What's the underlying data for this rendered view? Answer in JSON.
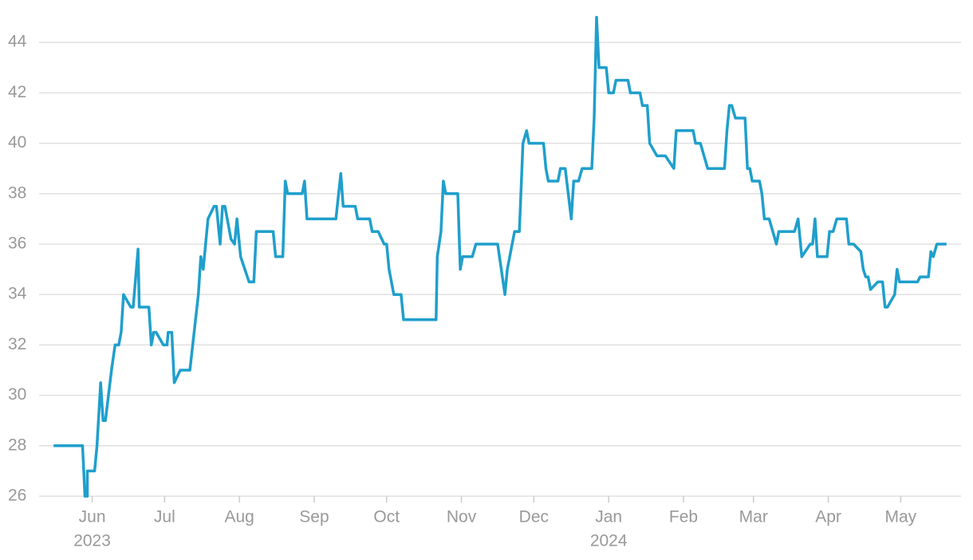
{
  "chart_data": {
    "type": "line",
    "series": [
      {
        "color": "#1f9fcc",
        "x": [
          0,
          12,
          13,
          14,
          14,
          17,
          18,
          19.5,
          20.5,
          21.5,
          24,
          25.5,
          27,
          28,
          29,
          32,
          33,
          35,
          35.5,
          39.5,
          40.5,
          41.5,
          42.5,
          45.5,
          47,
          47.5,
          49,
          50,
          52.5,
          56.5,
          60,
          61,
          62,
          64,
          66.5,
          67.5,
          69,
          70,
          71,
          73.5,
          75,
          76,
          77.5,
          81,
          83,
          84,
          91,
          92,
          95,
          96,
          97,
          103,
          104,
          105,
          117,
          119,
          120,
          125,
          126,
          131,
          132,
          134.5,
          137,
          138,
          139,
          141,
          144,
          145,
          158.5,
          159,
          160.5,
          161.5,
          162.5,
          167.5,
          168.5,
          169.5,
          173.5,
          175,
          184,
          187,
          188,
          191,
          193,
          194.5,
          196,
          197,
          203,
          204,
          205,
          209,
          210,
          212,
          214.5,
          215.5,
          217.5,
          219,
          223,
          224,
          225,
          226,
          229,
          230,
          232,
          233,
          238,
          239,
          243,
          244,
          246,
          247,
          250,
          253.5,
          257,
          258,
          265,
          266,
          268,
          271,
          278,
          279,
          280,
          281,
          282.5,
          286.5,
          287.5,
          288.5,
          289.5,
          292.5,
          293.5,
          294.5,
          296.5,
          299.5,
          300.5,
          307,
          308.5,
          310,
          313.5,
          314.5,
          315.5,
          316.5,
          320.5,
          321.5,
          323,
          324.5,
          328.5,
          329.5,
          331.5,
          334.5,
          335.5,
          336.5,
          337.5,
          338.5,
          341.5,
          343.5,
          344.5,
          345.5,
          348.5,
          349.5,
          350.5,
          358,
          359,
          362.5,
          363.5,
          364.5,
          366,
          370
        ],
        "values": [
          28,
          28,
          26,
          26,
          27,
          27,
          28,
          30.5,
          29,
          29,
          31,
          32,
          32,
          32.5,
          34,
          33.5,
          33.5,
          35.8,
          33.5,
          33.5,
          32,
          32.5,
          32.5,
          32,
          32,
          32.5,
          32.5,
          30.5,
          31,
          31,
          34,
          35.5,
          35,
          37,
          37.5,
          37.5,
          36,
          37.5,
          37.5,
          36.2,
          36,
          37,
          35.5,
          34.5,
          34.5,
          36.5,
          36.5,
          35.5,
          35.5,
          38.5,
          38,
          38,
          38.5,
          37,
          37,
          38.8,
          37.5,
          37.5,
          37,
          37,
          36.5,
          36.5,
          36,
          36,
          35,
          34,
          34,
          33,
          33,
          35.5,
          36.5,
          38.5,
          38,
          38,
          35,
          35.5,
          35.5,
          36,
          36,
          34,
          35,
          36.5,
          36.5,
          40,
          40.5,
          40,
          40,
          39,
          38.5,
          38.5,
          39,
          39,
          37,
          38.5,
          38.5,
          39,
          39,
          41,
          45,
          43,
          43,
          42,
          42,
          42.5,
          42.5,
          42,
          42,
          41.5,
          41.5,
          40,
          39.5,
          39.5,
          39,
          40.5,
          40.5,
          40,
          40,
          39,
          39,
          40.5,
          41.5,
          41.5,
          41,
          41,
          39,
          39,
          38.5,
          38.5,
          38,
          37,
          37,
          36,
          36.5,
          36.5,
          37,
          35.5,
          36,
          36,
          37,
          35.5,
          35.5,
          36.5,
          36.5,
          37,
          37,
          36,
          36,
          35.7,
          35,
          34.7,
          34.7,
          34.2,
          34.5,
          34.5,
          33.5,
          33.5,
          34,
          35,
          34.5,
          34.5,
          34.7,
          34.7,
          35.7,
          35.5,
          36,
          36
        ]
      }
    ],
    "xlim": [
      -6,
      376
    ],
    "xticks": [
      {
        "value": 16,
        "label": "Jun"
      },
      {
        "value": 46,
        "label": "Jul"
      },
      {
        "value": 77,
        "label": "Aug"
      },
      {
        "value": 108,
        "label": "Sep"
      },
      {
        "value": 138,
        "label": "Oct"
      },
      {
        "value": 169,
        "label": "Nov"
      },
      {
        "value": 199,
        "label": "Dec"
      },
      {
        "value": 230,
        "label": "Jan"
      },
      {
        "value": 261,
        "label": "Feb"
      },
      {
        "value": 290,
        "label": "Mar"
      },
      {
        "value": 321,
        "label": "Apr"
      },
      {
        "value": 351,
        "label": "May"
      }
    ],
    "xticks_year": [
      {
        "value": 16,
        "label": "2023"
      },
      {
        "value": 230,
        "label": "2024"
      }
    ],
    "ylim": [
      26,
      45
    ],
    "yticks": [
      26,
      28,
      30,
      32,
      34,
      36,
      38,
      40,
      42,
      44
    ],
    "grid": true
  }
}
